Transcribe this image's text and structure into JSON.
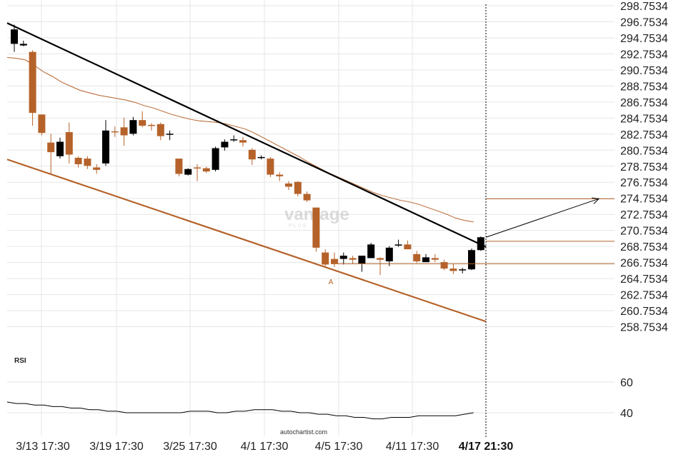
{
  "colors": {
    "up": "#000000",
    "down": "#b5622a",
    "accent": "#b5622a",
    "grid": "#e6e6e6",
    "text": "#222222"
  },
  "chart_data": [
    {
      "type": "candlestick",
      "title": "",
      "xlabel": "",
      "ylabel": "",
      "ylim": [
        256.7534,
        298.7534
      ],
      "y_ticks": [
        "298.7534",
        "296.7534",
        "294.7534",
        "292.7534",
        "290.7534",
        "288.7534",
        "286.7534",
        "284.7534",
        "282.7534",
        "280.7534",
        "278.7534",
        "276.7534",
        "274.7534",
        "272.7534",
        "270.7534",
        "268.7534",
        "266.7534",
        "264.7534",
        "262.7534",
        "260.7534",
        "258.7534"
      ],
      "x_tick_labels": [
        "3/13 17:30",
        "3/19 17:30",
        "3/25 17:30",
        "4/1 17:30",
        "4/5 17:30",
        "4/11 17:30"
      ],
      "current_time_label": "4/17 21:30",
      "watermark": "vantage",
      "watermark_sub": "PLUS",
      "point_label": "A",
      "grid": true,
      "candles": [
        {
          "o": 294.0,
          "h": 296.4,
          "l": 293.0,
          "c": 295.8
        },
        {
          "o": 293.8,
          "h": 294.4,
          "l": 293.7,
          "c": 294.0
        },
        {
          "o": 293.0,
          "h": 293.2,
          "l": 283.8,
          "c": 285.4
        },
        {
          "o": 285.2,
          "h": 285.2,
          "l": 282.6,
          "c": 282.9
        },
        {
          "o": 281.7,
          "h": 282.8,
          "l": 277.8,
          "c": 280.5
        },
        {
          "o": 280.0,
          "h": 282.3,
          "l": 279.7,
          "c": 281.8
        },
        {
          "o": 283.0,
          "h": 284.2,
          "l": 279.1,
          "c": 280.2
        },
        {
          "o": 279.8,
          "h": 280.0,
          "l": 278.6,
          "c": 279.0
        },
        {
          "o": 279.7,
          "h": 280.0,
          "l": 278.4,
          "c": 278.8
        },
        {
          "o": 278.6,
          "h": 279.0,
          "l": 277.8,
          "c": 278.3
        },
        {
          "o": 279.1,
          "h": 284.5,
          "l": 278.8,
          "c": 283.2
        },
        {
          "o": 283.1,
          "h": 283.7,
          "l": 282.4,
          "c": 283.0
        },
        {
          "o": 283.6,
          "h": 284.8,
          "l": 281.3,
          "c": 282.6
        },
        {
          "o": 282.8,
          "h": 284.9,
          "l": 282.6,
          "c": 284.5
        },
        {
          "o": 284.5,
          "h": 285.6,
          "l": 283.6,
          "c": 283.8
        },
        {
          "o": 283.9,
          "h": 284.1,
          "l": 283.2,
          "c": 283.8
        },
        {
          "o": 284.0,
          "h": 284.2,
          "l": 282.0,
          "c": 282.5
        },
        {
          "o": 282.7,
          "h": 283.2,
          "l": 282.0,
          "c": 282.8
        },
        {
          "o": 279.7,
          "h": 279.7,
          "l": 277.5,
          "c": 277.8
        },
        {
          "o": 277.7,
          "h": 278.5,
          "l": 277.6,
          "c": 278.4
        },
        {
          "o": 278.6,
          "h": 279.0,
          "l": 276.9,
          "c": 278.5
        },
        {
          "o": 278.5,
          "h": 278.7,
          "l": 277.9,
          "c": 278.1
        },
        {
          "o": 278.3,
          "h": 281.2,
          "l": 278.1,
          "c": 281.0
        },
        {
          "o": 281.1,
          "h": 282.1,
          "l": 280.7,
          "c": 281.8
        },
        {
          "o": 282.0,
          "h": 282.6,
          "l": 281.8,
          "c": 282.1
        },
        {
          "o": 282.0,
          "h": 282.4,
          "l": 281.2,
          "c": 281.7
        },
        {
          "o": 280.8,
          "h": 281.0,
          "l": 278.9,
          "c": 279.6
        },
        {
          "o": 279.8,
          "h": 280.1,
          "l": 279.6,
          "c": 279.9
        },
        {
          "o": 279.7,
          "h": 279.9,
          "l": 277.4,
          "c": 277.7
        },
        {
          "o": 277.7,
          "h": 278.0,
          "l": 276.9,
          "c": 277.5
        },
        {
          "o": 276.6,
          "h": 276.9,
          "l": 275.8,
          "c": 276.2
        },
        {
          "o": 276.8,
          "h": 276.9,
          "l": 275.0,
          "c": 275.3
        },
        {
          "o": 275.3,
          "h": 275.6,
          "l": 274.3,
          "c": 274.5
        },
        {
          "o": 273.6,
          "h": 273.6,
          "l": 268.1,
          "c": 268.6
        },
        {
          "o": 268.0,
          "h": 268.4,
          "l": 266.3,
          "c": 266.5
        },
        {
          "o": 267.2,
          "h": 268.0,
          "l": 266.2,
          "c": 266.6
        },
        {
          "o": 267.2,
          "h": 268.0,
          "l": 266.5,
          "c": 267.6
        },
        {
          "o": 267.3,
          "h": 267.6,
          "l": 266.6,
          "c": 267.1
        },
        {
          "o": 266.6,
          "h": 267.6,
          "l": 265.6,
          "c": 267.6
        },
        {
          "o": 267.3,
          "h": 269.2,
          "l": 267.3,
          "c": 269.0
        },
        {
          "o": 267.3,
          "h": 267.4,
          "l": 265.2,
          "c": 267.1
        },
        {
          "o": 266.9,
          "h": 268.8,
          "l": 266.3,
          "c": 268.6
        },
        {
          "o": 268.9,
          "h": 269.6,
          "l": 268.7,
          "c": 269.0
        },
        {
          "o": 269.0,
          "h": 269.5,
          "l": 268.4,
          "c": 268.4
        },
        {
          "o": 267.8,
          "h": 268.2,
          "l": 266.7,
          "c": 266.9
        },
        {
          "o": 266.8,
          "h": 267.8,
          "l": 266.8,
          "c": 267.4
        },
        {
          "o": 267.3,
          "h": 267.8,
          "l": 266.8,
          "c": 267.1
        },
        {
          "o": 266.8,
          "h": 267.1,
          "l": 265.8,
          "c": 266.0
        },
        {
          "o": 266.0,
          "h": 266.6,
          "l": 265.3,
          "c": 265.7
        },
        {
          "o": 265.8,
          "h": 266.1,
          "l": 265.4,
          "c": 265.9
        },
        {
          "o": 265.9,
          "h": 268.5,
          "l": 265.8,
          "c": 268.3
        },
        {
          "o": 268.3,
          "h": 270.0,
          "l": 268.2,
          "c": 269.9
        }
      ],
      "moving_average": [
        292.3,
        292.2,
        292.0,
        291.3,
        290.5,
        289.9,
        289.2,
        288.7,
        288.2,
        287.9,
        287.6,
        287.4,
        287.2,
        287.0,
        286.7,
        286.3,
        286.0,
        285.6,
        285.2,
        284.9,
        284.6,
        284.4,
        284.3,
        284.2,
        284.0,
        283.7,
        283.4,
        282.9,
        282.3,
        281.7,
        281.1,
        280.5,
        279.9,
        279.2,
        278.6,
        278.0,
        277.5,
        277.0,
        276.5,
        276.0,
        275.5,
        275.1,
        274.8,
        274.5,
        274.3,
        274.0,
        273.6,
        273.2,
        272.8,
        272.3,
        272.0,
        271.8
      ],
      "channel": {
        "upper_line": {
          "start": 296.6,
          "end": 268.7
        },
        "lower_line": {
          "start": 279.6,
          "end": 259.4
        }
      },
      "forecast_levels": [
        274.7,
        269.4,
        266.6
      ],
      "forecast_arrow": {
        "from": 269.9,
        "to": 274.7
      },
      "rsi": {
        "label": "RSI",
        "ticks": [
          60,
          40
        ],
        "values": [
          47,
          46,
          46,
          45,
          45,
          44,
          44,
          43,
          43,
          42,
          42,
          41,
          41,
          40,
          40,
          40,
          40,
          40,
          40,
          40,
          41,
          41,
          41,
          40,
          40,
          41,
          41,
          42,
          42,
          42,
          41,
          41,
          40,
          40,
          39,
          39,
          38,
          38,
          37,
          37,
          36,
          36,
          37,
          37,
          37,
          38,
          38,
          38,
          38,
          38,
          39,
          40
        ]
      },
      "attribution": "autochartist.com"
    }
  ]
}
